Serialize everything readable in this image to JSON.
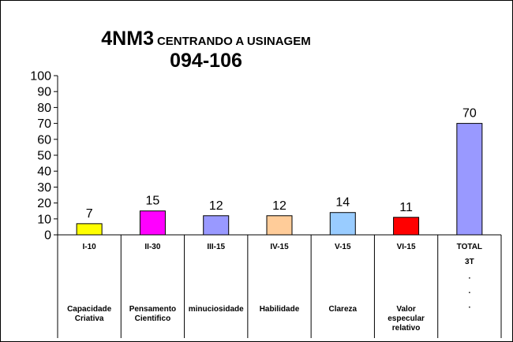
{
  "chart_data": {
    "type": "bar",
    "title": "4NM3",
    "title_suffix": "CENTRANDO A USINAGEM",
    "subtitle": "094-106",
    "categories": [
      "I-10",
      "II-30",
      "III-15",
      "IV-15",
      "V-15",
      "VI-15",
      "TOTAL"
    ],
    "descriptions": [
      [
        "Capacidade",
        "Criativa"
      ],
      [
        "Pensamento",
        "Cientifico"
      ],
      [
        "minuciosidade"
      ],
      [
        "Habilidade"
      ],
      [
        "Clareza"
      ],
      [
        "Valor",
        "especular",
        "relativo"
      ],
      [
        "3T",
        ".",
        ".",
        "."
      ]
    ],
    "values": [
      7,
      15,
      12,
      12,
      14,
      11,
      70
    ],
    "colors": [
      "#ffff00",
      "#ff00ff",
      "#9999ff",
      "#ffcc99",
      "#99ccff",
      "#ff0000",
      "#9999ff"
    ],
    "ylim": [
      0,
      100
    ],
    "yticks": [
      0,
      10,
      20,
      30,
      40,
      50,
      60,
      70,
      80,
      90,
      100
    ],
    "grid": false,
    "xlabel": "",
    "ylabel": ""
  }
}
